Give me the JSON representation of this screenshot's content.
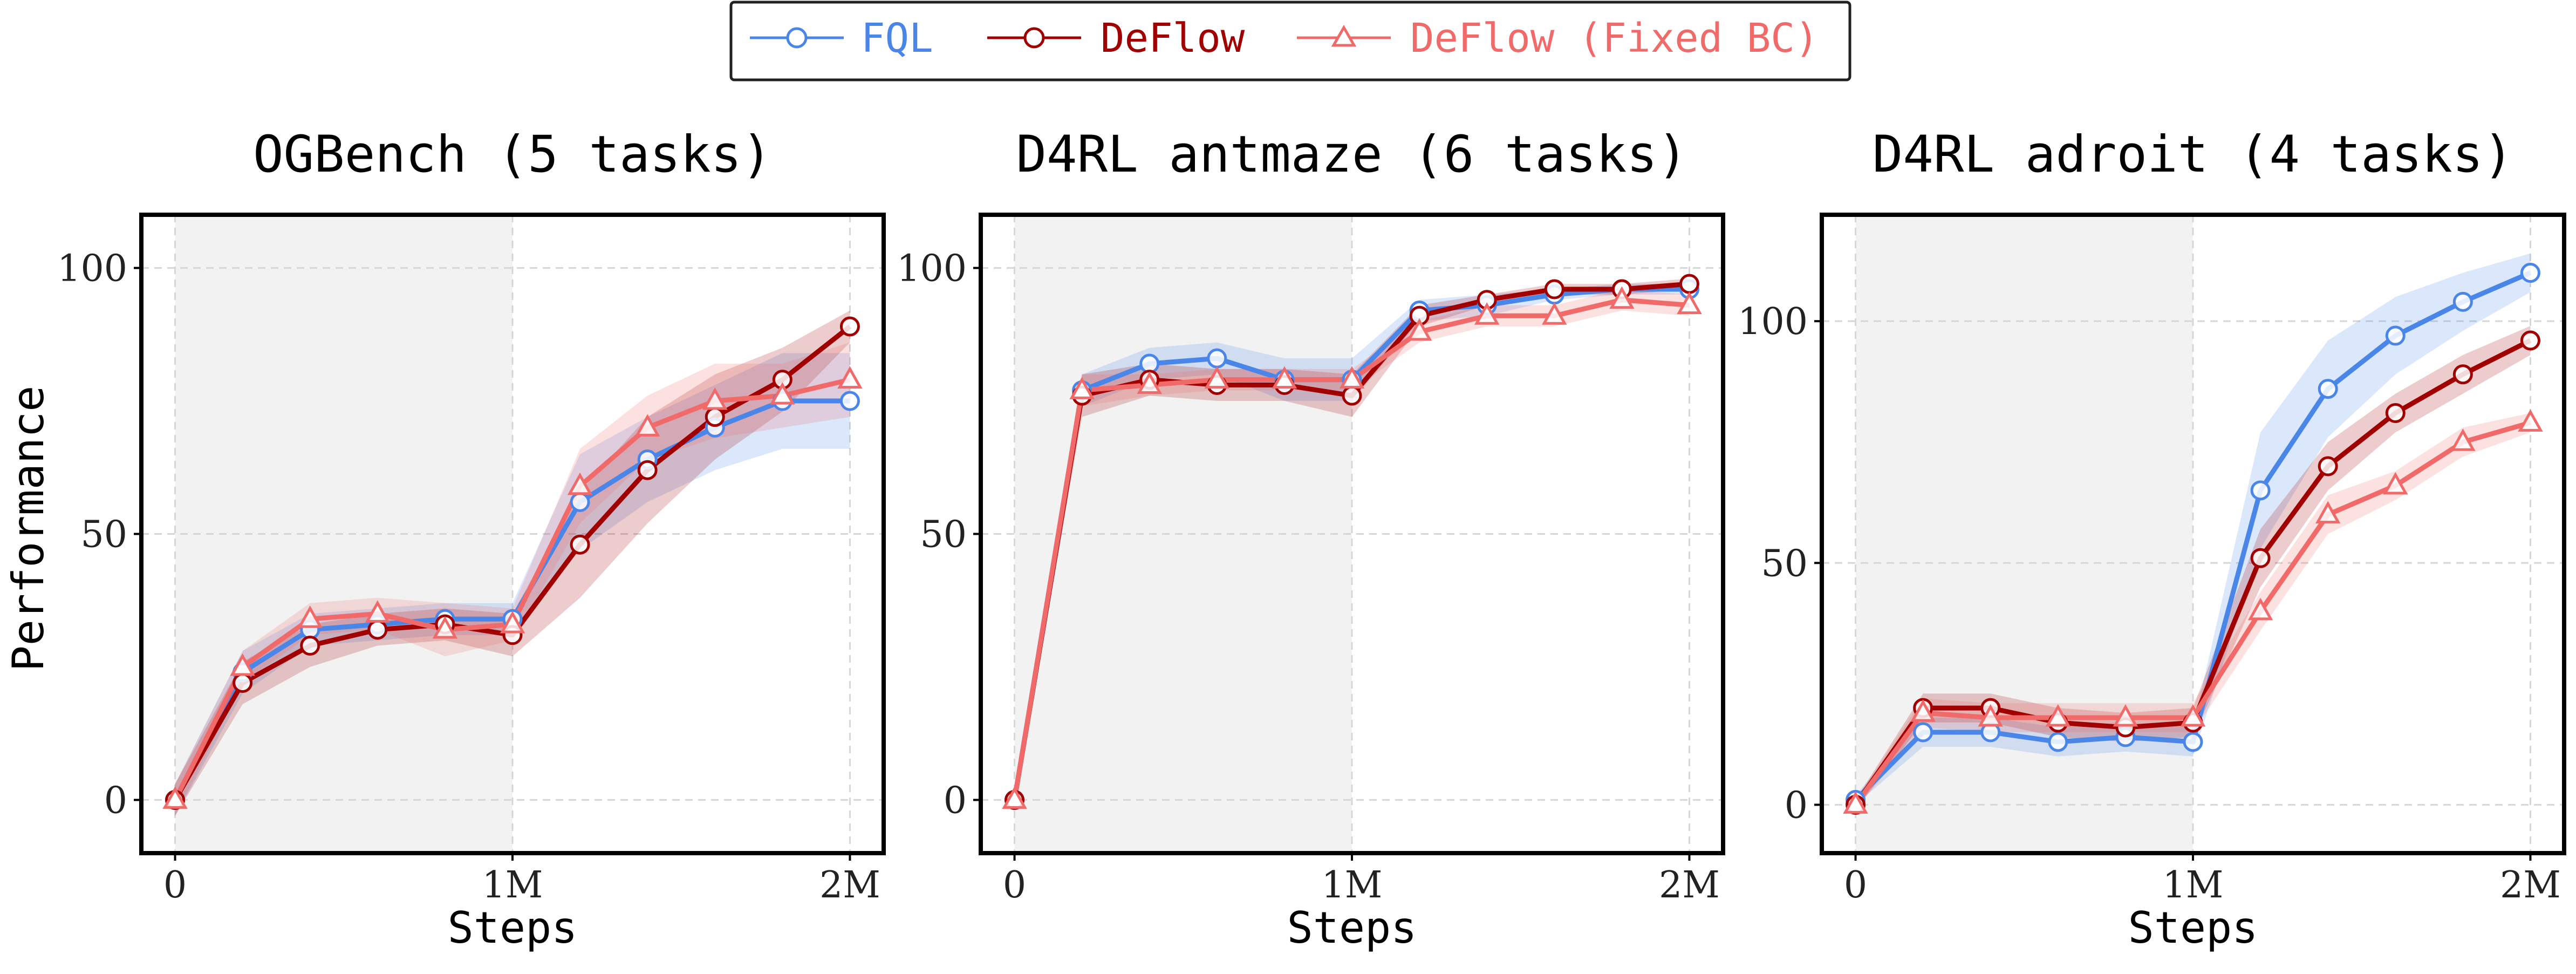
{
  "figure": {
    "legend": {
      "entries": [
        {
          "label": "FQL",
          "color": "#4a86e8",
          "marker": "circle"
        },
        {
          "label": "DeFlow",
          "color": "#a00000",
          "marker": "circle"
        },
        {
          "label": "DeFlow (Fixed BC)",
          "color": "#f06a6a",
          "marker": "triangle"
        }
      ]
    },
    "shaded_region_until": 1000000,
    "shade_color": "#f2f2f2"
  },
  "chart_data": [
    {
      "type": "line",
      "title": "OGBench (5 tasks)",
      "xlabel": "Steps",
      "ylabel": "Performance",
      "xlim": [
        -100000,
        2100000
      ],
      "ylim": [
        -10,
        110
      ],
      "xticks": [
        0,
        1000000,
        2000000
      ],
      "xticklabels": [
        "0",
        "1M",
        "2M"
      ],
      "yticks": [
        0,
        50,
        100
      ],
      "yticklabels": [
        "0",
        "50",
        "100"
      ],
      "x": [
        0,
        200000,
        400000,
        600000,
        800000,
        1000000,
        1200000,
        1400000,
        1600000,
        1800000,
        2000000
      ],
      "series": [
        {
          "name": "FQL",
          "values": [
            0,
            24,
            32,
            33,
            34,
            34,
            56,
            64,
            70,
            75,
            75
          ],
          "band": [
            3,
            4,
            3,
            3,
            3,
            3,
            9,
            8,
            8,
            9,
            9
          ]
        },
        {
          "name": "DeFlow",
          "values": [
            0,
            22,
            29,
            32,
            33,
            31,
            48,
            62,
            72,
            79,
            89
          ],
          "band": [
            3,
            4,
            4,
            3,
            3,
            4,
            10,
            10,
            8,
            6,
            3
          ]
        },
        {
          "name": "DeFlow (Fixed BC)",
          "values": [
            0,
            25,
            34,
            35,
            32,
            33,
            59,
            70,
            75,
            76,
            79
          ],
          "band": [
            3,
            3,
            3,
            3,
            5,
            3,
            7,
            6,
            7,
            6,
            7
          ]
        }
      ]
    },
    {
      "type": "line",
      "title": "D4RL antmaze (6 tasks)",
      "xlabel": "Steps",
      "ylabel": "",
      "xlim": [
        -100000,
        2100000
      ],
      "ylim": [
        -10,
        110
      ],
      "xticks": [
        0,
        1000000,
        2000000
      ],
      "xticklabels": [
        "0",
        "1M",
        "2M"
      ],
      "yticks": [
        0,
        50,
        100
      ],
      "yticklabels": [
        "0",
        "50",
        "100"
      ],
      "x": [
        0,
        200000,
        400000,
        600000,
        800000,
        1000000,
        1200000,
        1400000,
        1600000,
        1800000,
        2000000
      ],
      "series": [
        {
          "name": "FQL",
          "values": [
            0,
            77,
            82,
            83,
            79,
            79,
            92,
            93,
            95,
            96,
            96
          ],
          "band": [
            1,
            3,
            3,
            3,
            4,
            4,
            2,
            2,
            1,
            1,
            1
          ]
        },
        {
          "name": "DeFlow",
          "values": [
            0,
            76,
            79,
            78,
            78,
            76,
            91,
            94,
            96,
            96,
            97
          ],
          "band": [
            1,
            4,
            3,
            3,
            3,
            4,
            2,
            1,
            1,
            1,
            1
          ]
        },
        {
          "name": "DeFlow (Fixed BC)",
          "values": [
            0,
            77,
            78,
            79,
            79,
            79,
            88,
            91,
            91,
            94,
            93
          ],
          "band": [
            1,
            3,
            2,
            2,
            2,
            2,
            2,
            2,
            2,
            2,
            2
          ]
        }
      ]
    },
    {
      "type": "line",
      "title": "D4RL adroit (4 tasks)",
      "xlabel": "Steps",
      "ylabel": "",
      "xlim": [
        -100000,
        2100000
      ],
      "ylim": [
        -10,
        122
      ],
      "xticks": [
        0,
        1000000,
        2000000
      ],
      "xticklabels": [
        "0",
        "1M",
        "2M"
      ],
      "yticks": [
        0,
        50,
        100
      ],
      "yticklabels": [
        "0",
        "50",
        "100"
      ],
      "x": [
        0,
        200000,
        400000,
        600000,
        800000,
        1000000,
        1200000,
        1400000,
        1600000,
        1800000,
        2000000
      ],
      "series": [
        {
          "name": "FQL",
          "values": [
            1,
            15,
            15,
            13,
            14,
            13,
            65,
            86,
            97,
            104,
            110
          ],
          "band": [
            1,
            3,
            3,
            3,
            3,
            3,
            12,
            10,
            8,
            6,
            4
          ]
        },
        {
          "name": "DeFlow",
          "values": [
            0,
            20,
            20,
            17,
            16,
            17,
            51,
            70,
            81,
            89,
            96
          ],
          "band": [
            1,
            3,
            3,
            3,
            3,
            3,
            6,
            5,
            4,
            4,
            3
          ]
        },
        {
          "name": "DeFlow (Fixed BC)",
          "values": [
            0,
            19,
            18,
            18,
            18,
            18,
            40,
            60,
            66,
            75,
            79
          ],
          "band": [
            1,
            3,
            3,
            3,
            3,
            3,
            4,
            4,
            3,
            3,
            2
          ]
        }
      ]
    }
  ]
}
